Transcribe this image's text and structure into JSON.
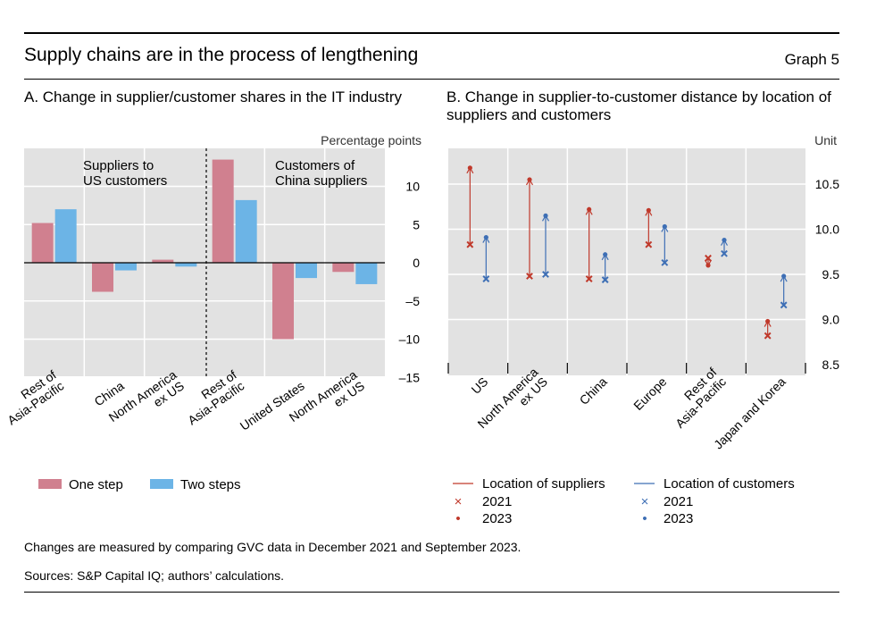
{
  "header": {
    "title": "Supply chains are in the process of lengthening",
    "graph_label": "Graph 5"
  },
  "footer": {
    "note": "Changes are measured by comparing GVC data in December 2021 and September 2023.",
    "sources": "Sources: S&P Capital IQ; authors’ calculations."
  },
  "colors": {
    "one_step": "#d0808f",
    "two_steps": "#6cb4e6",
    "suppliers": "#c0392b",
    "customers": "#3e6fb5",
    "plot_bg": "#e2e2e2"
  },
  "chart_data": [
    {
      "type": "bar",
      "panel": "A",
      "title": "A. Change in supplier/customer shares in the IT industry",
      "ylabel": "Percentage points",
      "ylim": [
        -15,
        15
      ],
      "yticks": [
        10,
        5,
        0,
        -5,
        -10,
        -15
      ],
      "ytick_labels": [
        "10",
        "5",
        "0",
        "–5",
        "–10",
        "–15"
      ],
      "groups": [
        {
          "label": "Suppliers to\nUS customers",
          "categories": [
            "Rest of Asia-Pacific",
            "China",
            "North America ex US"
          ]
        },
        {
          "label": "Customers of\nChina suppliers",
          "categories": [
            "Rest of Asia-Pacific",
            "United States",
            "North America ex US"
          ]
        }
      ],
      "category_labels": [
        "Rest of\nAsia-Pacific",
        "China",
        "North America\nex US",
        "Rest of\nAsia-Pacific",
        "United States",
        "North America\nex US"
      ],
      "series": [
        {
          "name": "One step",
          "values": [
            5.2,
            -3.8,
            0.4,
            13.5,
            -10.0,
            -1.2
          ]
        },
        {
          "name": "Two steps",
          "values": [
            7.0,
            -1.0,
            -0.5,
            8.2,
            -2.0,
            -2.8
          ]
        }
      ],
      "legend": [
        "One step",
        "Two steps"
      ]
    },
    {
      "type": "scatter",
      "panel": "B",
      "title": "B. Change in supplier-to-customer distance by location of suppliers and customers",
      "ylabel": "Unit",
      "ylim": [
        8.5,
        10.9
      ],
      "yticks": [
        10.5,
        10.0,
        9.5,
        9.0,
        8.5
      ],
      "ytick_labels": [
        "10.5",
        "10.0",
        "9.5",
        "9.0",
        "8.5"
      ],
      "categories": [
        "US",
        "North America\nex US",
        "China",
        "Europe",
        "Rest of\nAsia-Pacific",
        "Japan and Korea"
      ],
      "series": [
        {
          "name": "Location of suppliers",
          "v2021": [
            9.83,
            9.48,
            9.45,
            9.83,
            9.68,
            8.82
          ],
          "v2023": [
            10.68,
            10.55,
            10.22,
            10.21,
            9.6,
            8.98
          ]
        },
        {
          "name": "Location of customers",
          "v2021": [
            9.45,
            9.5,
            9.44,
            9.63,
            9.73,
            9.16
          ],
          "v2023": [
            9.91,
            10.15,
            9.72,
            10.03,
            9.88,
            9.48
          ]
        }
      ],
      "legend": {
        "suppliers_title": "Location of suppliers",
        "customers_title": "Location of customers",
        "y2021": "2021",
        "y2023": "2023",
        "marker_2021": "×",
        "marker_2023": "•"
      }
    }
  ]
}
